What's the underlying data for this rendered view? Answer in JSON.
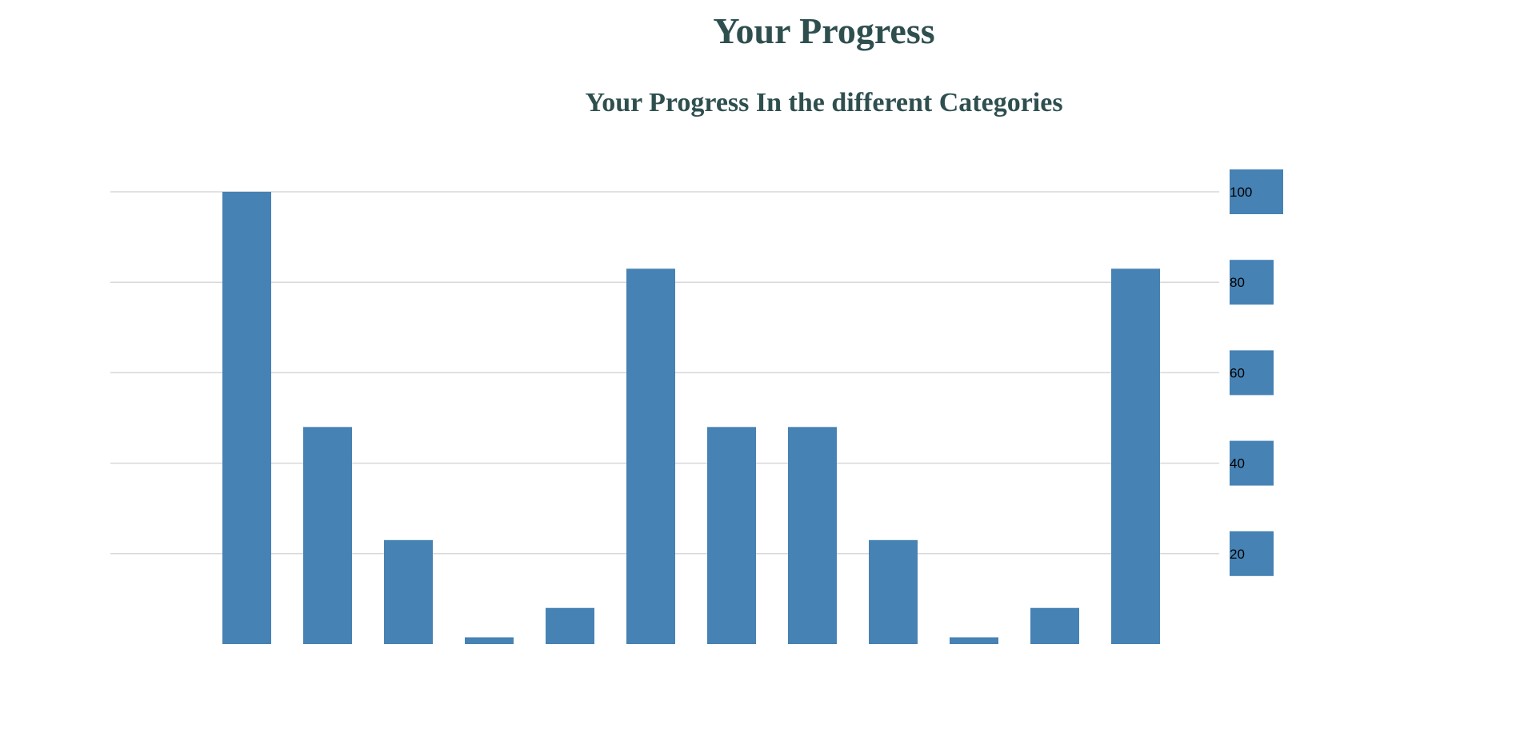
{
  "page": {
    "title": "Your Progress"
  },
  "chart_data": {
    "type": "bar",
    "title": "Your Progress In the different Categories",
    "xlabel": "",
    "ylabel": "",
    "categories": [
      "",
      "",
      "",
      "",
      "",
      "",
      "",
      "",
      "",
      "",
      "",
      ""
    ],
    "values": [
      100,
      48,
      23,
      1.5,
      8,
      83,
      48,
      48,
      23,
      1.5,
      8,
      83
    ],
    "ylim": [
      0,
      100
    ],
    "yticks": [
      20,
      40,
      60,
      80,
      100
    ],
    "grid": true,
    "y_axis_side": "right",
    "colors": {
      "bar": "#4682b4",
      "grid": "#d8d8d8",
      "title": "#2f4f4f"
    }
  }
}
